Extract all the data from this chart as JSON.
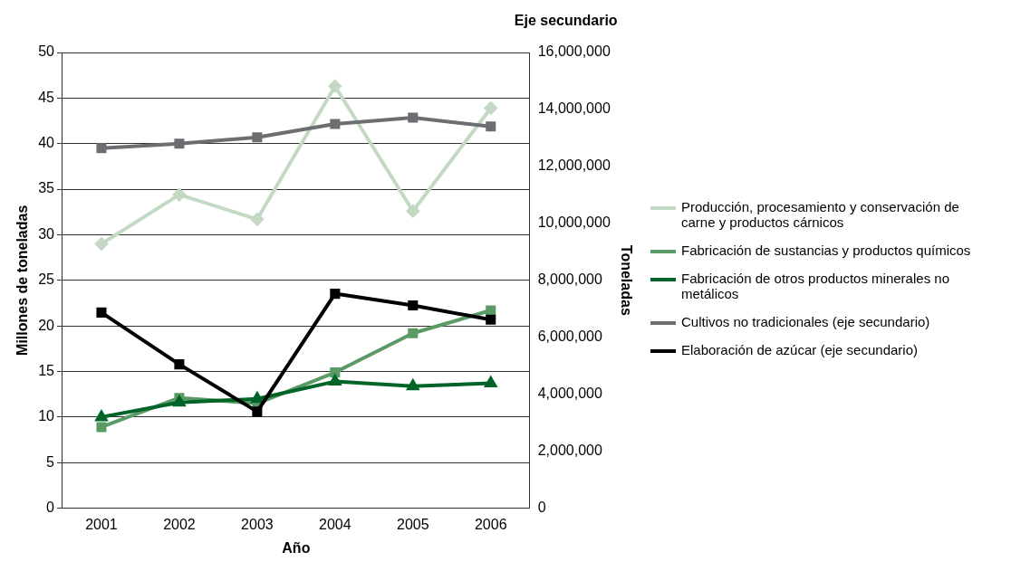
{
  "chart_data": {
    "type": "line",
    "title": "Eje secundario",
    "xlabel": "Año",
    "ylabel": "Millones de toneladas",
    "y2label": "Toneladas",
    "categories": [
      "2001",
      "2002",
      "2003",
      "2004",
      "2005",
      "2006"
    ],
    "series": [
      {
        "name": "Producción, procesamiento y conservación de carne y productos cárnicos",
        "color": "#c3d9c3",
        "marker": "diamond",
        "values": [
          29.0,
          34.4,
          31.7,
          46.3,
          32.6,
          43.9
        ]
      },
      {
        "name": "Fabricación de sustancias y productos químicos",
        "color": "#5a9a64",
        "marker": "square",
        "values": [
          8.9,
          12.1,
          11.5,
          14.9,
          19.2,
          21.7
        ]
      },
      {
        "name": "Fabricación de otros productos minerales no metálicos",
        "color": "#006428",
        "marker": "triangle",
        "values": [
          10.0,
          11.6,
          12.0,
          13.9,
          13.4,
          13.7
        ]
      },
      {
        "name": "Cultivos no tradicionales (eje secundario)",
        "color": "#6d6e71",
        "marker": "square",
        "axis": "y2",
        "values": [
          12640000,
          12800000,
          13020000,
          13490000,
          13710000,
          13400000
        ]
      },
      {
        "name": "Elaboración de azúcar (eje secundario)",
        "color": "#000000",
        "marker": "square",
        "axis": "y2",
        "values": [
          6870000,
          5050000,
          3390000,
          7530000,
          7120000,
          6620000
        ]
      }
    ],
    "ylim": [
      0,
      50
    ],
    "yticks": [
      0,
      5,
      10,
      15,
      20,
      25,
      30,
      35,
      40,
      45,
      50
    ],
    "y2lim": [
      0,
      16000000
    ],
    "y2ticks": [
      0,
      {
        "value": 2000000,
        "label": "2,000,000"
      },
      {
        "value": 4000000,
        "label": "4,000,000"
      },
      {
        "value": 6000000,
        "label": "6,000,000"
      },
      {
        "value": 8000000,
        "label": "8,000,000"
      },
      {
        "value": 10000000,
        "label": "10,000,000"
      },
      {
        "value": 12000000,
        "label": "12,000,000"
      },
      {
        "value": 14000000,
        "label": "14,000,000"
      },
      {
        "value": 16000000,
        "label": "16,000,000"
      }
    ],
    "grid": "y",
    "legend": "right",
    "line_style": "solid"
  }
}
